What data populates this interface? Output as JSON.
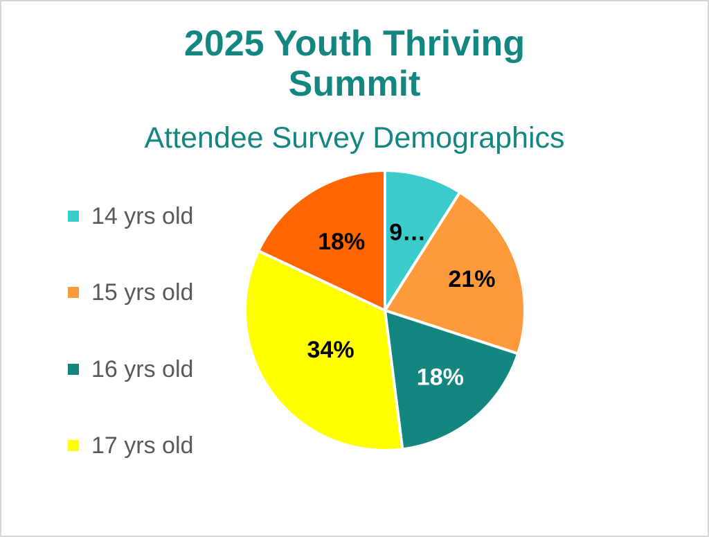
{
  "chart_data": {
    "type": "pie",
    "title": "2025 Youth Thriving Summit",
    "subtitle": "Attendee Survey Demographics",
    "legend_position": "left",
    "slices": [
      {
        "label": "14 yrs old",
        "value": 9,
        "display": "9…",
        "color": "#3CCBCB",
        "label_color": "#000000"
      },
      {
        "label": "15 yrs old",
        "value": 21,
        "display": "21%",
        "color": "#FF9A3B",
        "label_color": "#000000"
      },
      {
        "label": "16 yrs old",
        "value": 18,
        "display": "18%",
        "color": "#138680",
        "label_color": "#FFFFFF"
      },
      {
        "label": "17 yrs old",
        "value": 34,
        "display": "34%",
        "color": "#FFFF00",
        "label_color": "#000000"
      },
      {
        "label": "",
        "value": 18,
        "display": "18%",
        "color": "#FF6600",
        "label_color": "#000000"
      }
    ]
  }
}
